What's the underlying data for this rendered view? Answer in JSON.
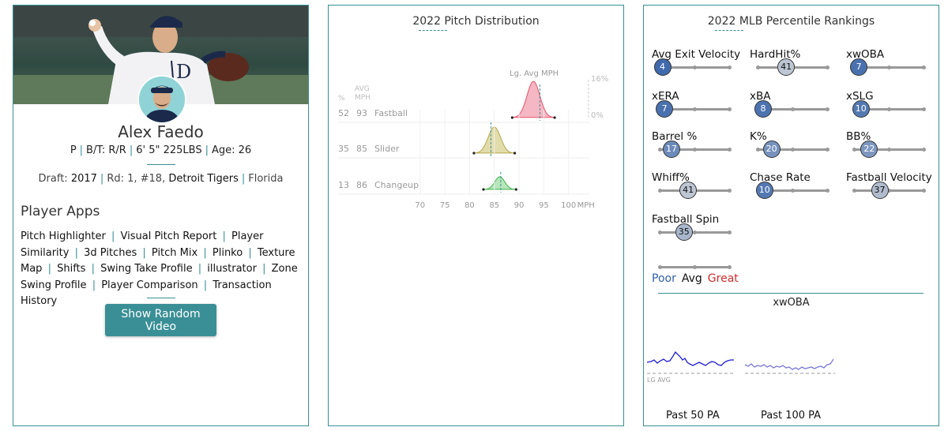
{
  "player": {
    "name": "Alex Faedo",
    "info": {
      "position": "P",
      "bt": "B/T: R/R",
      "size": "6' 5\" 225LBS",
      "age": "Age: 26"
    },
    "draft": {
      "label": "Draft:",
      "year": "2017",
      "round": "Rd: 1, #18,",
      "team": "Detroit Tigers",
      "school": "Florida"
    },
    "apps_title": "Player Apps",
    "apps": [
      "Pitch Highlighter",
      "Visual Pitch Report",
      "Player Similarity",
      "3d Pitches",
      "Pitch Mix",
      "Plinko",
      "Texture Map",
      "Shifts",
      "Swing Take Profile",
      "illustrator",
      "Zone Swing Profile",
      "Player Comparison",
      "Transaction History"
    ],
    "video_button": "Show Random Video"
  },
  "pitch_distribution": {
    "title": "2022 Pitch Distribution",
    "col_pct": "%",
    "col_avg": "AVG",
    "col_mph": "MPH",
    "lg_avg_label": "Lg. Avg MPH",
    "scale_top": "16%",
    "scale_bottom": "0%",
    "pitches": [
      {
        "pct": "52",
        "mph": "93",
        "name": "Fastball",
        "color": "#e8536b",
        "fill": "#f4b7c3",
        "mean": 92.9,
        "sd": 1.3,
        "lg_avg": 94.2,
        "peak": 1.0
      },
      {
        "pct": "35",
        "mph": "85",
        "name": "Slider",
        "color": "#b5a74a",
        "fill": "#e2dcab",
        "mean": 85.0,
        "sd": 1.25,
        "lg_avg": 84.3,
        "peak": 0.72
      },
      {
        "pct": "13",
        "mph": "86",
        "name": "Changeup",
        "color": "#3cb54a",
        "fill": "#b7e6bb",
        "mean": 86.1,
        "sd": 1.0,
        "lg_avg": 86.3,
        "peak": 0.35
      }
    ],
    "x_axis": {
      "ticks": [
        70,
        75,
        80,
        85,
        90,
        95,
        100
      ],
      "unit": "MPH",
      "range": [
        67,
        105
      ]
    }
  },
  "percentiles": {
    "title": "2022 MLB Percentile Rankings",
    "metrics": [
      {
        "label": "Avg Exit Velocity",
        "value": 4
      },
      {
        "label": "HardHit%",
        "value": 41
      },
      {
        "label": "xwOBA",
        "value": 7
      },
      {
        "label": "xERA",
        "value": 7
      },
      {
        "label": "xBA",
        "value": 8
      },
      {
        "label": "xSLG",
        "value": 10
      },
      {
        "label": "Barrel %",
        "value": 17
      },
      {
        "label": "K%",
        "value": 20
      },
      {
        "label": "BB%",
        "value": 22
      },
      {
        "label": "Whiff%",
        "value": 41
      },
      {
        "label": "Chase Rate",
        "value": 10
      },
      {
        "label": "Fastball Velocity",
        "value": 37
      },
      {
        "label": "Fastball Spin",
        "value": 35
      }
    ],
    "legend": {
      "poor": "Poor",
      "avg": "Avg",
      "great": "Great"
    },
    "colors": {
      "poor": "#3260a8",
      "avg": "#111111",
      "great": "#d22d2d",
      "accent": "#3a8f96"
    },
    "xwoba_title": "xwOBA",
    "lg_avg": "LG AVG",
    "past50": "Past 50 PA",
    "past100": "Past 100 PA"
  }
}
